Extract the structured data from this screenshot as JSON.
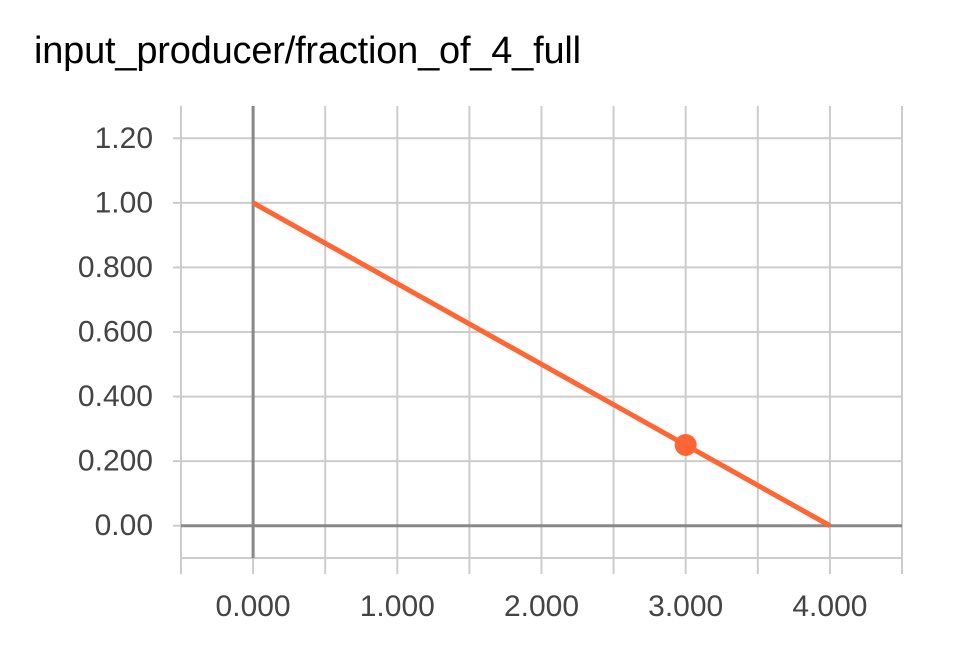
{
  "chart_data": {
    "type": "line",
    "title": "input_producer/fraction_of_4_full",
    "xlabel": "",
    "ylabel": "",
    "x": [
      0,
      4
    ],
    "series": [
      {
        "values": [
          1.0,
          0.0
        ],
        "color": "#ff6633"
      }
    ],
    "highlight_point": {
      "x": 3.0,
      "y": 0.25,
      "color": "#ff6633"
    },
    "xlim": [
      -0.5,
      4.5
    ],
    "ylim": [
      -0.1,
      1.3
    ],
    "x_ticks": [
      0,
      1,
      2,
      3,
      4
    ],
    "x_tick_labels": [
      "0.000",
      "1.000",
      "2.000",
      "3.000",
      "4.000"
    ],
    "y_ticks": [
      0,
      0.2,
      0.4,
      0.6,
      0.8,
      1.0,
      1.2
    ],
    "y_tick_labels": [
      "0.00",
      "0.200",
      "0.400",
      "0.600",
      "0.800",
      "1.00",
      "1.20"
    ],
    "grid": true,
    "colors": {
      "line": "#ff6633",
      "grid": "#cccccc",
      "axis": "#888888",
      "tick_text": "#444444"
    }
  }
}
